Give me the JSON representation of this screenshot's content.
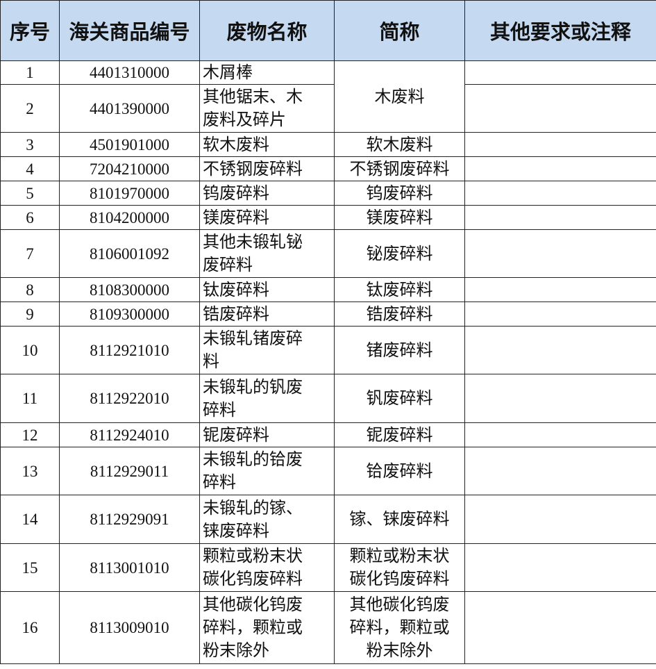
{
  "headers": [
    "序号",
    "海关商品编号",
    "废物名称",
    "简称",
    "其他要求或注释"
  ],
  "header_bg": "#c5d9f1",
  "rows": [
    {
      "no": "1",
      "code": "4401310000",
      "name": "木屑棒",
      "short": "木废料",
      "note": ""
    },
    {
      "no": "2",
      "code": "4401390000",
      "name": "其他锯末、木废料及碎片",
      "short": null,
      "note": ""
    },
    {
      "no": "3",
      "code": "4501901000",
      "name": "软木废料",
      "short": "软木废料",
      "note": ""
    },
    {
      "no": "4",
      "code": "7204210000",
      "name": "不锈钢废碎料",
      "short": "不锈钢废碎料",
      "note": ""
    },
    {
      "no": "5",
      "code": "8101970000",
      "name": "钨废碎料",
      "short": "钨废碎料",
      "note": ""
    },
    {
      "no": "6",
      "code": "8104200000",
      "name": "镁废碎料",
      "short": "镁废碎料",
      "note": ""
    },
    {
      "no": "7",
      "code": "8106001092",
      "name": "其他未锻轧铋废碎料",
      "short": "铋废碎料",
      "note": ""
    },
    {
      "no": "8",
      "code": "8108300000",
      "name": "钛废碎料",
      "short": "钛废碎料",
      "note": ""
    },
    {
      "no": "9",
      "code": "8109300000",
      "name": "锆废碎料",
      "short": "锆废碎料",
      "note": ""
    },
    {
      "no": "10",
      "code": "8112921010",
      "name": "未锻轧锗废碎料",
      "short": "锗废碎料",
      "note": ""
    },
    {
      "no": "11",
      "code": "8112922010",
      "name": "未锻轧的钒废碎料",
      "short": "钒废碎料",
      "note": ""
    },
    {
      "no": "12",
      "code": "8112924010",
      "name": "铌废碎料",
      "short": "铌废碎料",
      "note": ""
    },
    {
      "no": "13",
      "code": "8112929011",
      "name": "未锻轧的铪废碎料",
      "short": "铪废碎料",
      "note": ""
    },
    {
      "no": "14",
      "code": "8112929091",
      "name": "未锻轧的镓、铼废碎料",
      "short": "镓、铼废碎料",
      "note": ""
    },
    {
      "no": "15",
      "code": "8113001010",
      "name": "颗粒或粉末状碳化钨废碎料",
      "short": "颗粒或粉末状碳化钨废碎料",
      "note": ""
    },
    {
      "no": "16",
      "code": "8113009010",
      "name": "其他碳化钨废碎料，颗粒或粉末除外",
      "short": "其他碳化钨废碎料，颗粒或粉末除外",
      "note": ""
    }
  ]
}
